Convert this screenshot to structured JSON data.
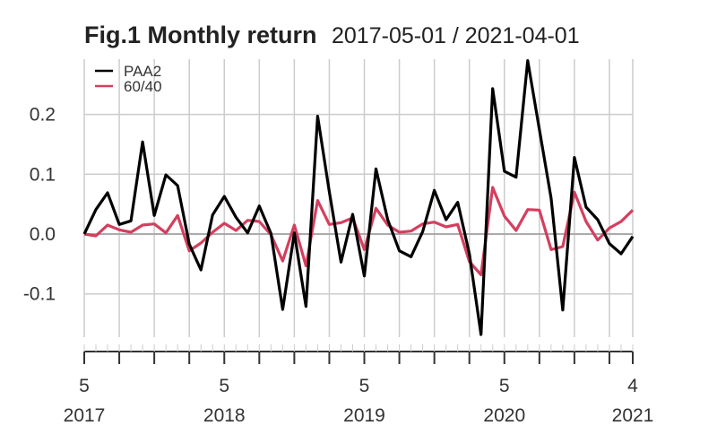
{
  "colors": {
    "background": "#ffffff",
    "grid": "#cccccc",
    "zero_line": "#aaaaaa",
    "axis": "#333333"
  },
  "chart_data": {
    "type": "line",
    "title": "Fig.1 Monthly return",
    "date_range": "2017-05-01 / 2021-04-01",
    "x": [
      "2017-05",
      "2017-06",
      "2017-07",
      "2017-08",
      "2017-09",
      "2017-10",
      "2017-11",
      "2017-12",
      "2018-01",
      "2018-02",
      "2018-03",
      "2018-04",
      "2018-05",
      "2018-06",
      "2018-07",
      "2018-08",
      "2018-09",
      "2018-10",
      "2018-11",
      "2018-12",
      "2019-01",
      "2019-02",
      "2019-03",
      "2019-04",
      "2019-05",
      "2019-06",
      "2019-07",
      "2019-08",
      "2019-09",
      "2019-10",
      "2019-11",
      "2019-12",
      "2020-01",
      "2020-02",
      "2020-03",
      "2020-04",
      "2020-05",
      "2020-06",
      "2020-07",
      "2020-08",
      "2020-09",
      "2020-10",
      "2020-11",
      "2020-12",
      "2021-01",
      "2021-02",
      "2021-03",
      "2021-04"
    ],
    "series": [
      {
        "name": "PAA2",
        "color": "#000000",
        "values": [
          0.0,
          0.041,
          0.069,
          0.016,
          0.022,
          0.154,
          0.031,
          0.099,
          0.081,
          -0.017,
          -0.06,
          0.032,
          0.063,
          0.028,
          0.002,
          0.047,
          0.001,
          -0.126,
          0.002,
          -0.121,
          0.197,
          0.071,
          -0.047,
          0.033,
          -0.07,
          0.109,
          0.024,
          -0.028,
          -0.038,
          0.004,
          0.073,
          0.024,
          0.053,
          -0.033,
          -0.168,
          0.243,
          0.105,
          0.095,
          0.29,
          0.175,
          0.06,
          -0.127,
          0.128,
          0.045,
          0.024,
          -0.016,
          -0.033,
          -0.004
        ]
      },
      {
        "name": "60/40",
        "color": "#d43f5e",
        "values": [
          0.0,
          -0.003,
          0.015,
          0.007,
          0.003,
          0.015,
          0.017,
          0.002,
          0.031,
          -0.028,
          -0.015,
          0.003,
          0.018,
          0.006,
          0.023,
          0.021,
          -0.001,
          -0.045,
          0.015,
          -0.053,
          0.056,
          0.016,
          0.019,
          0.027,
          -0.026,
          0.043,
          0.015,
          0.003,
          0.005,
          0.017,
          0.02,
          0.012,
          0.016,
          -0.046,
          -0.068,
          0.078,
          0.03,
          0.006,
          0.041,
          0.04,
          -0.026,
          -0.021,
          0.07,
          0.021,
          -0.01,
          0.01,
          0.021,
          0.04
        ]
      }
    ],
    "y_ticks": [
      "0.2",
      "0.1",
      "0.0",
      "-0.1"
    ],
    "y_tick_values": [
      0.2,
      0.1,
      0.0,
      -0.1
    ],
    "ylim": [
      -0.17,
      0.29
    ],
    "x_ticks": [
      {
        "date": "2017-05",
        "month": "5",
        "year": "2017"
      },
      {
        "date": "2018-05",
        "month": "5",
        "year": "2018"
      },
      {
        "date": "2019-05",
        "month": "5",
        "year": "2019"
      },
      {
        "date": "2020-05",
        "month": "5",
        "year": "2020"
      },
      {
        "date": "2021-04",
        "month": "4",
        "year": "2021"
      }
    ],
    "grid": true,
    "legend_position": "top-left"
  }
}
